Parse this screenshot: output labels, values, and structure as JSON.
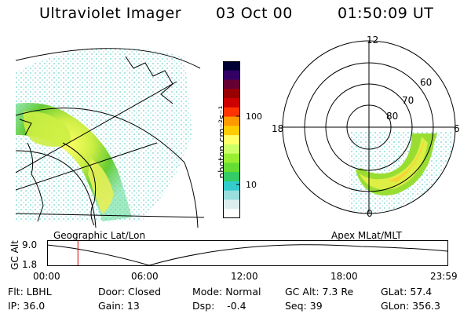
{
  "header": {
    "instrument": "Ultraviolet Imager",
    "date": "03 Oct 00",
    "time": "01:50:09 UT"
  },
  "colorbar": {
    "unit_label": "photon cm⁻²s⁻¹",
    "ticks": [
      "100",
      "10"
    ],
    "colors": [
      "#000033",
      "#330066",
      "#660033",
      "#990000",
      "#cc0000",
      "#ff3300",
      "#ff9900",
      "#ffcc00",
      "#ffff66",
      "#ccff66",
      "#99ee33",
      "#66dd33",
      "#33cc66",
      "#33cccc",
      "#99dddd",
      "#ddeeee",
      "#ffffff"
    ]
  },
  "maps": {
    "left_label": "Geographic Lat/Lon",
    "right_label": "Apex  MLat/MLT",
    "mlt_labels": {
      "top": "12",
      "left": "18",
      "right": "6",
      "bottom": "0"
    },
    "mlat_labels": [
      "60",
      "70",
      "80"
    ]
  },
  "altitude_plot": {
    "ylabel": "GC Alt",
    "yticks": [
      "9.0",
      "1.8"
    ],
    "xticks": [
      "00:00",
      "06:00",
      "12:00",
      "18:00",
      "23:59"
    ],
    "current_time_fraction": 0.077,
    "marker_color": "#dd0000"
  },
  "info": {
    "row1": {
      "filter": "Flt: LBHL",
      "door": "Door: Closed",
      "mode": "Mode: Normal",
      "gc_alt": "GC Alt: 7.3 Re",
      "glat": "GLat: 57.4"
    },
    "row2": {
      "ip": "IP: 36.0",
      "gain": "Gain: 13",
      "dsp": "Dsp:    -0.4",
      "seq": "Seq: 39",
      "glon": "GLon: 356.3"
    }
  }
}
